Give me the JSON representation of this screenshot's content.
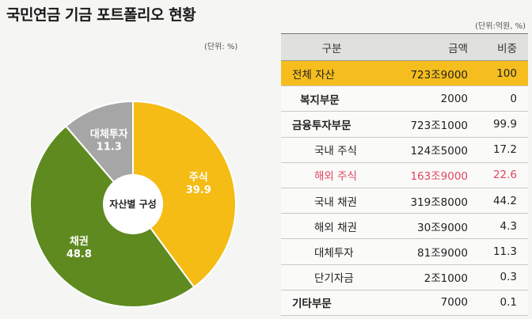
{
  "title": "국민연금 기금 포트폴리오 현황",
  "chart_unit": "(단위: %)",
  "table_unit": "(단위:억원, %)",
  "colors": {
    "stocks": "#f5bc15",
    "bonds": "#5e8a1f",
    "alternative": "#a6a6a6",
    "highlight_row": "#e0455d",
    "total_row": "#f5be1e"
  },
  "chart_data": {
    "type": "pie",
    "center_label": "자산별 구성",
    "slices": [
      {
        "label": "주식",
        "value": 39.9,
        "value_text": "39.9",
        "color": "#f5bc15"
      },
      {
        "label": "채권",
        "value": 48.8,
        "value_text": "48.8",
        "color": "#5e8a1f"
      },
      {
        "label": "대체투자",
        "value": 11.3,
        "value_text": "11.3",
        "color": "#a6a6a6"
      }
    ]
  },
  "table": {
    "headers": [
      "구분",
      "금액",
      "비중"
    ],
    "rows": [
      {
        "label": "전체 자산",
        "amount": "723조9000",
        "share": "100",
        "level": 0,
        "total": true
      },
      {
        "label": "복지부문",
        "amount": "2000",
        "share": "0",
        "level": 1
      },
      {
        "label": "금융투자부문",
        "amount": "723조1000",
        "share": "99.9",
        "level": 0
      },
      {
        "label": "국내 주식",
        "amount": "124조5000",
        "share": "17.2",
        "level": 2
      },
      {
        "label": "해외 주식",
        "amount": "163조9000",
        "share": "22.6",
        "level": 2,
        "highlight": true
      },
      {
        "label": "국내 채권",
        "amount": "319조8000",
        "share": "44.2",
        "level": 2
      },
      {
        "label": "해외 채권",
        "amount": "30조9000",
        "share": "4.3",
        "level": 2
      },
      {
        "label": "대체투자",
        "amount": "81조9000",
        "share": "11.3",
        "level": 2
      },
      {
        "label": "단기자금",
        "amount": "2조1000",
        "share": "0.3",
        "level": 2
      },
      {
        "label": "기타부문",
        "amount": "7000",
        "share": "0.1",
        "level": 0
      }
    ]
  }
}
